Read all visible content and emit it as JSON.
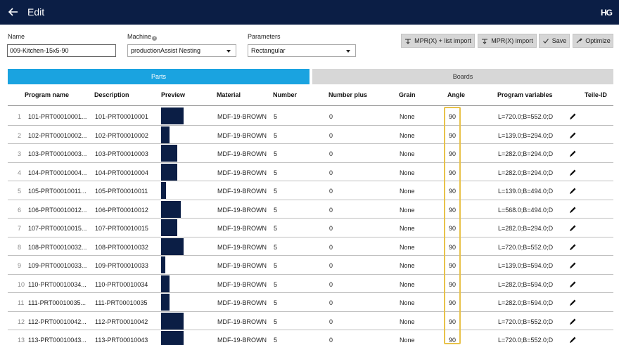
{
  "header": {
    "title": "Edit",
    "logo": "HG"
  },
  "form": {
    "name_label": "Name",
    "name_value": "009-Kitchen-15x5-90",
    "machine_label": "Machine",
    "machine_value": "productionAssist Nesting",
    "parameters_label": "Parameters",
    "parameters_value": "Rectangular"
  },
  "toolbar": {
    "mpr_list_import": "MPR(X) + list import",
    "mpr_import": "MPR(X) import",
    "save": "Save",
    "optimize": "Optimize"
  },
  "tabs": {
    "parts": "Parts",
    "boards": "Boards"
  },
  "columns": [
    "Program name",
    "Description",
    "Preview",
    "Material",
    "Number",
    "Number plus",
    "Grain",
    "Angle",
    "Program variables",
    "Teile-ID"
  ],
  "rows": [
    {
      "idx": "1",
      "program": "101-PRT00010001...",
      "desc": "101-PRT00010001",
      "preview": 0.95,
      "material": "MDF-19-BROWN",
      "number": "5",
      "plus": "0",
      "grain": "None",
      "angle": "90",
      "vars": "L=720.0;B=552.0;D"
    },
    {
      "idx": "2",
      "program": "102-PRT00010002...",
      "desc": "102-PRT00010002",
      "preview": 0.34,
      "material": "MDF-19-BROWN",
      "number": "5",
      "plus": "0",
      "grain": "None",
      "angle": "90",
      "vars": "L=139.0;B=294.0;D"
    },
    {
      "idx": "3",
      "program": "103-PRT00010003...",
      "desc": "103-PRT00010003",
      "preview": 0.69,
      "material": "MDF-19-BROWN",
      "number": "5",
      "plus": "0",
      "grain": "None",
      "angle": "90",
      "vars": "L=282.0;B=294.0;D"
    },
    {
      "idx": "4",
      "program": "104-PRT00010004...",
      "desc": "104-PRT00010004",
      "preview": 0.69,
      "material": "MDF-19-BROWN",
      "number": "5",
      "plus": "0",
      "grain": "None",
      "angle": "90",
      "vars": "L=282.0;B=294.0;D"
    },
    {
      "idx": "5",
      "program": "105-PRT00010011...",
      "desc": "105-PRT00010011",
      "preview": 0.2,
      "material": "MDF-19-BROWN",
      "number": "5",
      "plus": "0",
      "grain": "None",
      "angle": "90",
      "vars": "L=139.0;B=494.0;D"
    },
    {
      "idx": "6",
      "program": "106-PRT00010012...",
      "desc": "106-PRT00010012",
      "preview": 0.83,
      "material": "MDF-19-BROWN",
      "number": "5",
      "plus": "0",
      "grain": "None",
      "angle": "90",
      "vars": "L=568.0;B=494.0;D"
    },
    {
      "idx": "7",
      "program": "107-PRT00010015...",
      "desc": "107-PRT00010015",
      "preview": 0.69,
      "material": "MDF-19-BROWN",
      "number": "5",
      "plus": "0",
      "grain": "None",
      "angle": "90",
      "vars": "L=282.0;B=294.0;D"
    },
    {
      "idx": "8",
      "program": "108-PRT00010032...",
      "desc": "108-PRT00010032",
      "preview": 0.95,
      "material": "MDF-19-BROWN",
      "number": "5",
      "plus": "0",
      "grain": "None",
      "angle": "90",
      "vars": "L=720.0;B=552.0;D"
    },
    {
      "idx": "9",
      "program": "109-PRT00010033...",
      "desc": "109-PRT00010033",
      "preview": 0.17,
      "material": "MDF-19-BROWN",
      "number": "5",
      "plus": "0",
      "grain": "None",
      "angle": "90",
      "vars": "L=139.0;B=594.0;D"
    },
    {
      "idx": "10",
      "program": "110-PRT00010034...",
      "desc": "110-PRT00010034",
      "preview": 0.34,
      "material": "MDF-19-BROWN",
      "number": "5",
      "plus": "0",
      "grain": "None",
      "angle": "90",
      "vars": "L=282.0;B=594.0;D"
    },
    {
      "idx": "11",
      "program": "111-PRT00010035...",
      "desc": "111-PRT00010035",
      "preview": 0.34,
      "material": "MDF-19-BROWN",
      "number": "5",
      "plus": "0",
      "grain": "None",
      "angle": "90",
      "vars": "L=282.0;B=594.0;D"
    },
    {
      "idx": "12",
      "program": "112-PRT00010042...",
      "desc": "112-PRT00010042",
      "preview": 0.95,
      "material": "MDF-19-BROWN",
      "number": "5",
      "plus": "0",
      "grain": "None",
      "angle": "90",
      "vars": "L=720.0;B=552.0;D"
    },
    {
      "idx": "13",
      "program": "113-PRT00010043...",
      "desc": "113-PRT00010043",
      "preview": 0.95,
      "material": "MDF-19-BROWN",
      "number": "5",
      "plus": "0",
      "grain": "None",
      "angle": "90",
      "vars": "L=720.0;B=552.0;D"
    }
  ],
  "colors": {
    "topbar": "#0b1e45",
    "accent": "#1aa3e0",
    "highlight": "#e8c24a"
  }
}
